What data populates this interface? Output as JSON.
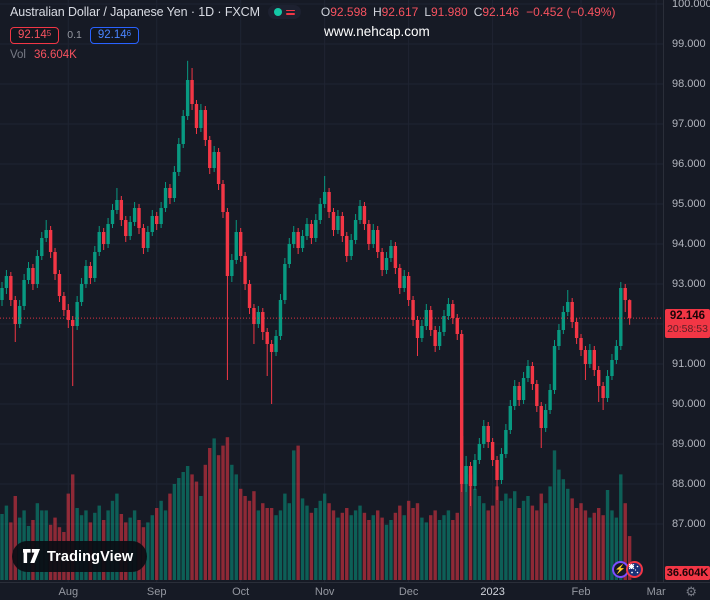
{
  "legend": {
    "symbol_title": "Australian Dollar / Japanese Yen · 1D · FXCM",
    "ohlc": [
      {
        "k": "O",
        "v": "92.598"
      },
      {
        "k": "H",
        "v": "92.617"
      },
      {
        "k": "L",
        "v": "91.980"
      },
      {
        "k": "C",
        "v": "92.146"
      }
    ],
    "change": "−0.452 (−0.49%)",
    "bid": "92.14",
    "bid_sup": "5",
    "spread": "0.1",
    "ask": "92.14",
    "ask_sup": "6",
    "vol_label": "Vol",
    "vol_value": "36.604K"
  },
  "watermark": {
    "text": "www.nehcap.com"
  },
  "logo": {
    "text": "TradingView"
  },
  "price_label": {
    "value": "92.146",
    "countdown": "20:58:53"
  },
  "volume_label": {
    "value": "36.604K"
  },
  "axis": {
    "gear": "⚙"
  },
  "icons": {
    "bolt": "⚡"
  },
  "colors": {
    "background": "#161a25",
    "grid": "#1f2432",
    "up": "#089981",
    "down": "#f23645",
    "vol_up": "rgba(8,153,129,0.55)",
    "vol_down": "rgba(242,54,69,0.55)",
    "price_line": "#f23645",
    "axis_text": "#b2b5be"
  },
  "chart_data": {
    "type": "candlestick",
    "title": "Australian Dollar / Japanese Yen",
    "interval": "1D",
    "exchange": "FXCM",
    "current_price": 92.146,
    "price_ticks": [
      100,
      99,
      98,
      97,
      96,
      95,
      94,
      93,
      91,
      90,
      89,
      88,
      87
    ],
    "ylim": [
      86.5,
      100.2
    ],
    "time_ticks": [
      {
        "label": "Aug",
        "index": 15
      },
      {
        "label": "Sep",
        "index": 35
      },
      {
        "label": "Oct",
        "index": 54
      },
      {
        "label": "Nov",
        "index": 73
      },
      {
        "label": "Dec",
        "index": 92
      },
      {
        "label": "2023",
        "index": 111,
        "year": true
      },
      {
        "label": "Feb",
        "index": 131
      },
      {
        "label": "Mar",
        "index": 148
      }
    ],
    "volume_unit": "K",
    "candles": [
      [
        92.6,
        93.05,
        92.45,
        92.9,
        55
      ],
      [
        92.9,
        93.35,
        92.75,
        93.2,
        62
      ],
      [
        93.2,
        93.3,
        92.45,
        92.6,
        48
      ],
      [
        92.6,
        92.7,
        91.55,
        92.0,
        70
      ],
      [
        92.0,
        92.6,
        91.9,
        92.45,
        52
      ],
      [
        92.45,
        93.25,
        92.35,
        93.1,
        58
      ],
      [
        93.1,
        93.55,
        93.0,
        93.4,
        45
      ],
      [
        93.4,
        93.5,
        92.85,
        93.0,
        50
      ],
      [
        93.0,
        93.85,
        92.9,
        93.7,
        64
      ],
      [
        93.7,
        94.3,
        93.6,
        94.15,
        58
      ],
      [
        94.15,
        94.6,
        94.05,
        94.35,
        58
      ],
      [
        94.35,
        94.45,
        93.65,
        93.8,
        46
      ],
      [
        93.8,
        93.9,
        93.1,
        93.25,
        52
      ],
      [
        93.25,
        93.35,
        92.55,
        92.7,
        44
      ],
      [
        92.7,
        92.8,
        92.2,
        92.35,
        40
      ],
      [
        92.35,
        92.5,
        91.9,
        92.1,
        72
      ],
      [
        92.1,
        92.2,
        90.45,
        91.95,
        88
      ],
      [
        91.95,
        92.7,
        91.85,
        92.55,
        60
      ],
      [
        92.55,
        93.15,
        92.45,
        93.0,
        54
      ],
      [
        93.0,
        93.6,
        92.9,
        93.45,
        58
      ],
      [
        93.45,
        93.55,
        93.0,
        93.15,
        48
      ],
      [
        93.15,
        93.95,
        93.05,
        93.8,
        56
      ],
      [
        93.8,
        94.45,
        93.7,
        94.3,
        62
      ],
      [
        94.3,
        94.4,
        93.85,
        94.0,
        50
      ],
      [
        94.0,
        94.65,
        93.9,
        94.5,
        58
      ],
      [
        94.5,
        95.0,
        94.4,
        94.85,
        66
      ],
      [
        94.85,
        95.4,
        94.75,
        95.1,
        72
      ],
      [
        95.1,
        95.2,
        94.45,
        94.6,
        55
      ],
      [
        94.6,
        94.7,
        94.05,
        94.2,
        48
      ],
      [
        94.2,
        94.7,
        94.1,
        94.55,
        52
      ],
      [
        94.55,
        95.05,
        94.45,
        94.9,
        58
      ],
      [
        94.9,
        95.0,
        94.25,
        94.4,
        50
      ],
      [
        94.4,
        94.5,
        93.75,
        93.9,
        44
      ],
      [
        93.9,
        94.45,
        93.8,
        94.3,
        48
      ],
      [
        94.3,
        94.85,
        94.2,
        94.7,
        54
      ],
      [
        94.7,
        94.8,
        94.35,
        94.5,
        60
      ],
      [
        94.5,
        95.05,
        94.4,
        94.9,
        66
      ],
      [
        94.9,
        95.55,
        94.8,
        95.4,
        58
      ],
      [
        95.4,
        95.5,
        95.0,
        95.15,
        72
      ],
      [
        95.15,
        95.95,
        95.05,
        95.8,
        80
      ],
      [
        95.8,
        96.65,
        95.7,
        96.5,
        85
      ],
      [
        96.5,
        97.35,
        96.4,
        97.2,
        90
      ],
      [
        97.2,
        98.58,
        97.1,
        98.1,
        95
      ],
      [
        98.1,
        98.4,
        97.35,
        97.5,
        88
      ],
      [
        97.5,
        97.6,
        96.75,
        96.9,
        82
      ],
      [
        96.9,
        97.5,
        96.8,
        97.35,
        70
      ],
      [
        97.35,
        97.45,
        96.45,
        96.6,
        96
      ],
      [
        96.6,
        96.7,
        95.75,
        95.9,
        110
      ],
      [
        95.9,
        96.45,
        95.8,
        96.3,
        118
      ],
      [
        96.3,
        96.4,
        95.35,
        95.5,
        104
      ],
      [
        95.5,
        95.6,
        94.65,
        94.8,
        112
      ],
      [
        94.8,
        94.9,
        90.6,
        93.2,
        119
      ],
      [
        93.2,
        93.75,
        93.05,
        93.6,
        96
      ],
      [
        93.6,
        94.6,
        93.5,
        94.3,
        88
      ],
      [
        94.3,
        94.4,
        93.55,
        93.7,
        76
      ],
      [
        93.7,
        93.8,
        92.85,
        93.0,
        70
      ],
      [
        93.0,
        93.1,
        92.25,
        92.4,
        66
      ],
      [
        92.4,
        92.5,
        91.5,
        92.0,
        74
      ],
      [
        92.0,
        92.45,
        91.9,
        92.3,
        58
      ],
      [
        92.3,
        92.4,
        91.6,
        91.8,
        64
      ],
      [
        91.8,
        91.9,
        90.7,
        91.5,
        60
      ],
      [
        91.5,
        91.6,
        90.0,
        91.3,
        60
      ],
      [
        91.3,
        91.85,
        91.2,
        91.7,
        54
      ],
      [
        91.7,
        92.75,
        91.6,
        92.6,
        58
      ],
      [
        92.6,
        93.65,
        92.5,
        93.5,
        72
      ],
      [
        93.5,
        94.15,
        93.4,
        94.0,
        64
      ],
      [
        94.0,
        94.45,
        93.9,
        94.3,
        108
      ],
      [
        94.3,
        94.4,
        93.75,
        93.9,
        112
      ],
      [
        93.9,
        94.35,
        93.8,
        94.2,
        68
      ],
      [
        94.2,
        94.65,
        94.1,
        94.5,
        62
      ],
      [
        94.5,
        94.6,
        94.0,
        94.15,
        56
      ],
      [
        94.15,
        94.75,
        94.05,
        94.6,
        60
      ],
      [
        94.6,
        95.15,
        94.5,
        95.0,
        66
      ],
      [
        95.0,
        95.7,
        94.9,
        95.3,
        72
      ],
      [
        95.3,
        95.4,
        94.65,
        94.8,
        64
      ],
      [
        94.8,
        94.9,
        94.2,
        94.35,
        58
      ],
      [
        94.35,
        94.85,
        94.25,
        94.7,
        52
      ],
      [
        94.7,
        94.8,
        94.05,
        94.2,
        56
      ],
      [
        94.2,
        94.3,
        93.55,
        93.7,
        60
      ],
      [
        93.7,
        94.25,
        93.6,
        94.1,
        54
      ],
      [
        94.1,
        94.75,
        94.0,
        94.6,
        58
      ],
      [
        94.6,
        95.1,
        94.5,
        94.95,
        62
      ],
      [
        94.95,
        95.05,
        94.35,
        94.5,
        56
      ],
      [
        94.5,
        94.6,
        93.85,
        94.0,
        50
      ],
      [
        94.0,
        94.5,
        93.9,
        94.35,
        54
      ],
      [
        94.35,
        94.45,
        93.65,
        93.8,
        58
      ],
      [
        93.8,
        93.9,
        93.2,
        93.35,
        52
      ],
      [
        93.35,
        93.8,
        93.25,
        93.65,
        46
      ],
      [
        93.65,
        94.1,
        93.55,
        93.95,
        50
      ],
      [
        93.95,
        94.05,
        93.25,
        93.4,
        56
      ],
      [
        93.4,
        93.5,
        92.75,
        92.9,
        62
      ],
      [
        92.9,
        93.35,
        92.8,
        93.2,
        54
      ],
      [
        93.2,
        93.3,
        92.45,
        92.6,
        66
      ],
      [
        92.6,
        92.7,
        91.95,
        92.1,
        60
      ],
      [
        92.1,
        92.2,
        91.2,
        91.65,
        64
      ],
      [
        91.65,
        92.1,
        91.55,
        91.95,
        52
      ],
      [
        91.95,
        92.5,
        91.85,
        92.35,
        48
      ],
      [
        92.35,
        92.45,
        91.7,
        91.85,
        54
      ],
      [
        91.85,
        91.95,
        91.3,
        91.45,
        58
      ],
      [
        91.45,
        91.95,
        91.35,
        91.8,
        50
      ],
      [
        91.8,
        92.35,
        91.7,
        92.2,
        54
      ],
      [
        92.2,
        92.65,
        92.1,
        92.5,
        58
      ],
      [
        92.5,
        92.6,
        92.0,
        92.15,
        50
      ],
      [
        92.15,
        92.25,
        91.6,
        91.75,
        56
      ],
      [
        91.75,
        91.85,
        87.8,
        88.0,
        120
      ],
      [
        88.0,
        88.7,
        87.8,
        88.45,
        95
      ],
      [
        88.45,
        88.55,
        87.45,
        87.95,
        88
      ],
      [
        87.95,
        88.75,
        87.85,
        88.6,
        76
      ],
      [
        88.6,
        89.15,
        88.5,
        89.0,
        70
      ],
      [
        89.0,
        89.6,
        88.9,
        89.45,
        64
      ],
      [
        89.45,
        89.55,
        88.9,
        89.05,
        58
      ],
      [
        89.05,
        89.15,
        88.45,
        88.6,
        62
      ],
      [
        88.6,
        88.7,
        87.6,
        88.1,
        78
      ],
      [
        88.1,
        88.9,
        88.0,
        88.75,
        66
      ],
      [
        88.75,
        89.5,
        88.65,
        89.35,
        72
      ],
      [
        89.35,
        90.1,
        89.25,
        89.95,
        68
      ],
      [
        89.95,
        90.6,
        89.85,
        90.45,
        74
      ],
      [
        90.45,
        90.55,
        89.95,
        90.1,
        60
      ],
      [
        90.1,
        90.8,
        90.0,
        90.65,
        66
      ],
      [
        90.65,
        91.1,
        90.55,
        90.95,
        70
      ],
      [
        90.95,
        91.05,
        90.35,
        90.5,
        62
      ],
      [
        90.5,
        90.6,
        89.8,
        89.95,
        58
      ],
      [
        89.95,
        90.05,
        88.9,
        89.4,
        72
      ],
      [
        89.4,
        90.0,
        89.3,
        89.85,
        64
      ],
      [
        89.85,
        90.5,
        89.75,
        90.35,
        78
      ],
      [
        90.35,
        91.6,
        90.25,
        91.45,
        108
      ],
      [
        91.45,
        92.0,
        91.35,
        91.85,
        92
      ],
      [
        91.85,
        92.45,
        91.75,
        92.3,
        84
      ],
      [
        92.3,
        92.85,
        92.2,
        92.55,
        76
      ],
      [
        92.55,
        92.65,
        91.9,
        92.05,
        68
      ],
      [
        92.05,
        92.15,
        91.5,
        91.65,
        60
      ],
      [
        91.65,
        91.75,
        91.2,
        91.35,
        64
      ],
      [
        91.35,
        91.45,
        90.6,
        91.0,
        58
      ],
      [
        91.0,
        91.5,
        90.9,
        91.35,
        52
      ],
      [
        91.35,
        91.45,
        90.7,
        90.85,
        56
      ],
      [
        90.85,
        90.95,
        90.05,
        90.45,
        60
      ],
      [
        90.45,
        90.55,
        89.85,
        90.15,
        54
      ],
      [
        90.15,
        90.85,
        90.05,
        90.7,
        75
      ],
      [
        90.7,
        91.25,
        90.6,
        91.1,
        58
      ],
      [
        91.1,
        91.6,
        91.0,
        91.45,
        52
      ],
      [
        91.45,
        93.05,
        91.35,
        92.9,
        88
      ],
      [
        92.9,
        93.0,
        92.3,
        92.6,
        64
      ],
      [
        92.598,
        92.617,
        91.98,
        92.146,
        36.6
      ]
    ]
  }
}
